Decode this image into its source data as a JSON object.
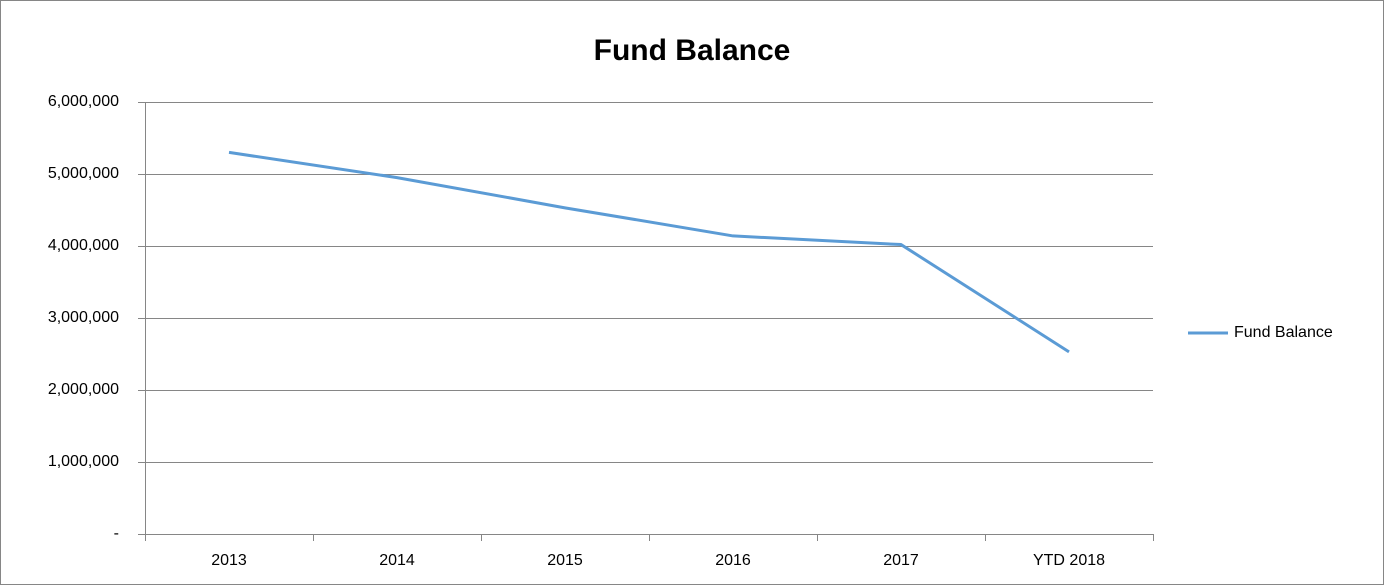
{
  "chart_data": {
    "type": "line",
    "title": "Fund Balance",
    "categories": [
      "2013",
      "2014",
      "2015",
      "2016",
      "2017",
      "YTD 2018"
    ],
    "series": [
      {
        "name": "Fund Balance",
        "color": "#5b9bd5",
        "values": [
          5300000,
          4950000,
          4530000,
          4140000,
          4020000,
          2530000
        ]
      }
    ],
    "ylim": [
      0,
      6000000
    ],
    "yticks": [
      {
        "value": 0,
        "label": "-"
      },
      {
        "value": 1000000,
        "label": "1,000,000"
      },
      {
        "value": 2000000,
        "label": "2,000,000"
      },
      {
        "value": 3000000,
        "label": "3,000,000"
      },
      {
        "value": 4000000,
        "label": "4,000,000"
      },
      {
        "value": 5000000,
        "label": "5,000,000"
      },
      {
        "value": 6000000,
        "label": "6,000,000"
      }
    ],
    "grid": true,
    "legend": "right"
  }
}
